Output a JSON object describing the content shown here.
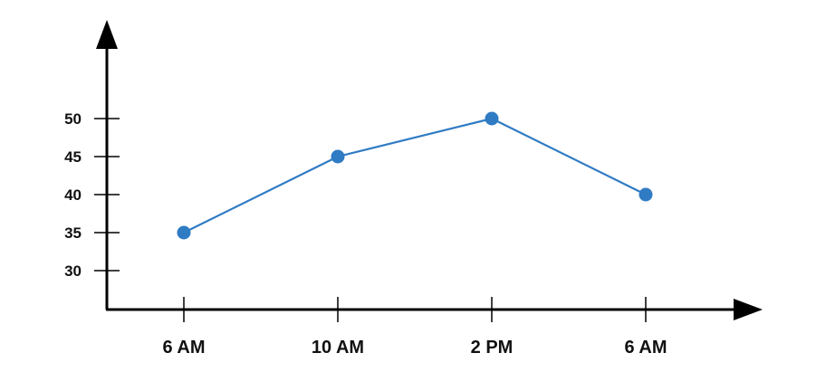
{
  "chart_data": {
    "type": "line",
    "title": "",
    "xlabel": "",
    "ylabel": "",
    "categories": [
      "6 AM",
      "10 AM",
      "2 PM",
      "6 AM"
    ],
    "series": [
      {
        "values": [
          35,
          45,
          50,
          40
        ]
      }
    ],
    "yticks": [
      30,
      35,
      40,
      45,
      50
    ],
    "ylim": [
      25,
      50
    ],
    "grid": false,
    "legend": "none",
    "colors": {
      "line": "#2f7bc4",
      "marker": "#2f7bc4",
      "axis": "#000000",
      "text": "#111111"
    }
  }
}
